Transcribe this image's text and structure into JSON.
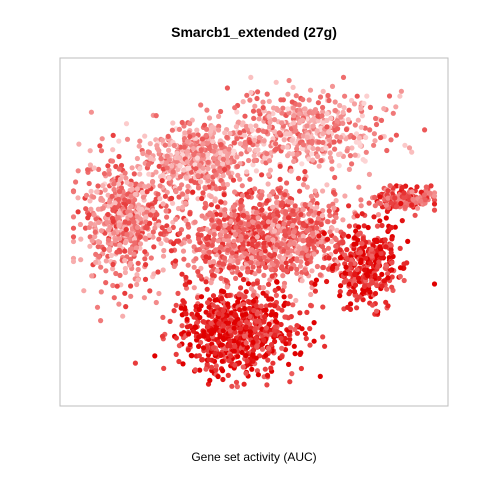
{
  "chart_data": {
    "type": "scatter",
    "title": "Smarcb1_extended (27g)",
    "xlabel": "Gene set activity (AUC)",
    "ylabel": "",
    "grid": false,
    "legend": "none",
    "color_scale": {
      "low": "#ffe6e6",
      "high": "#e00000"
    },
    "clusters": [
      {
        "name": "upper-left",
        "cx": 0.34,
        "cy": 0.72,
        "sx": 0.07,
        "sy": 0.05,
        "n": 520,
        "activity": 0.35
      },
      {
        "name": "left-lobe",
        "cx": 0.16,
        "cy": 0.54,
        "sx": 0.06,
        "sy": 0.09,
        "n": 560,
        "activity": 0.45
      },
      {
        "name": "top-right",
        "cx": 0.64,
        "cy": 0.8,
        "sx": 0.1,
        "sy": 0.06,
        "n": 480,
        "activity": 0.35
      },
      {
        "name": "center",
        "cx": 0.46,
        "cy": 0.48,
        "sx": 0.08,
        "sy": 0.08,
        "n": 620,
        "activity": 0.55
      },
      {
        "name": "center-right",
        "cx": 0.62,
        "cy": 0.5,
        "sx": 0.07,
        "sy": 0.07,
        "n": 420,
        "activity": 0.5
      },
      {
        "name": "right-dense",
        "cx": 0.8,
        "cy": 0.4,
        "sx": 0.05,
        "sy": 0.06,
        "n": 340,
        "activity": 0.85
      },
      {
        "name": "far-right",
        "cx": 0.9,
        "cy": 0.6,
        "sx": 0.04,
        "sy": 0.02,
        "n": 160,
        "activity": 0.65
      },
      {
        "name": "bottom",
        "cx": 0.45,
        "cy": 0.2,
        "sx": 0.08,
        "sy": 0.06,
        "n": 700,
        "activity": 0.85
      }
    ]
  }
}
